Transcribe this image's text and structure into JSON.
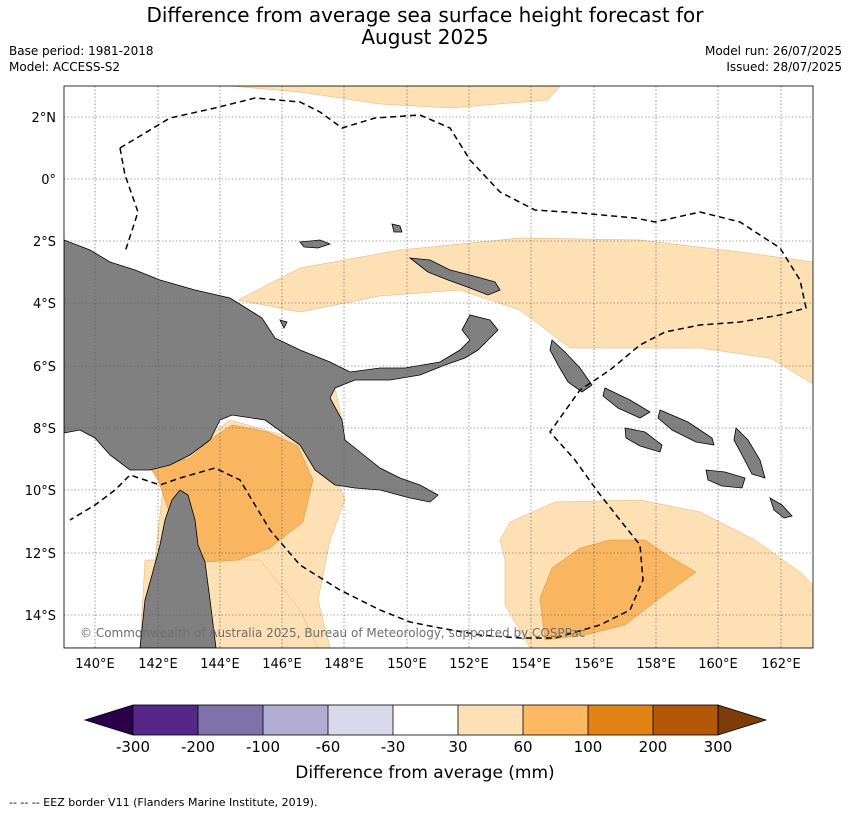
{
  "header": {
    "title_line1": "Difference from average sea surface height forecast for",
    "title_line2": "August 2025",
    "base_period": "Base period: 1981-2018",
    "model": "Model: ACCESS-S2",
    "model_run": "Model run: 26/07/2025",
    "issued": "Issued: 28/07/2025"
  },
  "map": {
    "lat_labels": [
      "2°N",
      "0°",
      "2°S",
      "4°S",
      "6°S",
      "8°S",
      "10°S",
      "12°S",
      "14°S"
    ],
    "lon_labels": [
      "140°E",
      "142°E",
      "144°E",
      "146°E",
      "148°E",
      "150°E",
      "152°E",
      "154°E",
      "156°E",
      "158°E",
      "160°E",
      "162°E"
    ],
    "copyright": "© Commonwealth of Australia 2025, Bureau of Meteorology, supported by COSPPac",
    "colors": {
      "land": "#808080",
      "c30_60": "#fde0b4",
      "c60_100": "#f9b560",
      "border": "#000000"
    }
  },
  "colorbar": {
    "ticks": [
      "-300",
      "-200",
      "-100",
      "-60",
      "-30",
      "30",
      "60",
      "100",
      "200",
      "300"
    ],
    "colors": [
      "#2d004b",
      "#542788",
      "#8073ac",
      "#b2abd2",
      "#d8daeb",
      "#ffffff",
      "#fee0b6",
      "#fdb863",
      "#e08214",
      "#b35806",
      "#7f3b08"
    ],
    "label": "Difference from average (mm)"
  },
  "footer": {
    "legend_text": "--  --  -- EEZ border V11 (Flanders Marine Institute, 2019)."
  }
}
